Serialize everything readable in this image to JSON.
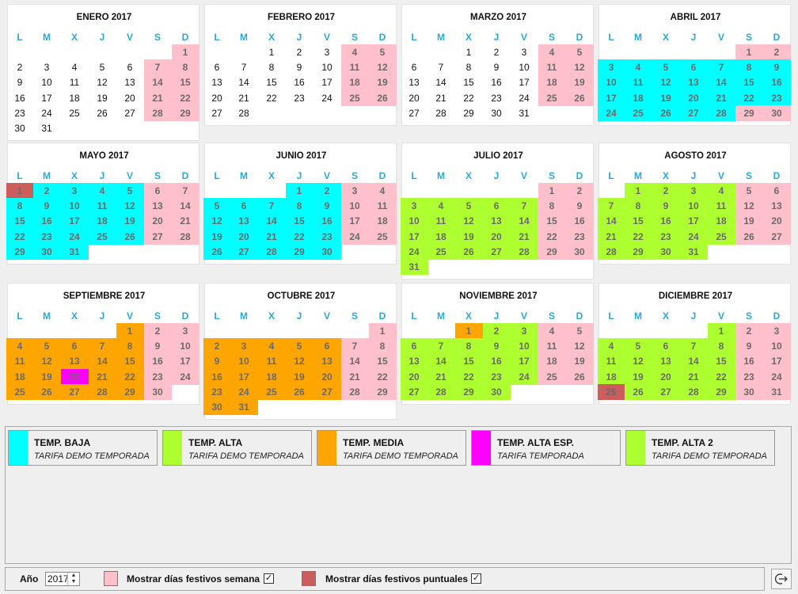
{
  "weekday_headers": [
    "L",
    "M",
    "X",
    "J",
    "V",
    "S",
    "D"
  ],
  "colors": {
    "weekend_holiday": "#ffc0cb",
    "specific_holiday": "#cd5c5c",
    "temp_baja": "#00ffff",
    "temp_alta": "#adff2f",
    "temp_media": "#ffa500",
    "temp_alta_esp": "#ff00ff",
    "temp_alta_2": "#adff2f"
  },
  "months": [
    {
      "title": "ENERO 2017",
      "offset": 6,
      "days": 31,
      "special": {}
    },
    {
      "title": "FEBRERO 2017",
      "offset": 2,
      "days": 28,
      "special": {}
    },
    {
      "title": "MARZO 2017",
      "offset": 2,
      "days": 31,
      "special": {}
    },
    {
      "title": "ABRIL 2017",
      "offset": 5,
      "days": 30,
      "special": {
        "3-28": "temp_baja"
      }
    },
    {
      "title": "MAYO 2017",
      "offset": 0,
      "days": 31,
      "special": {
        "1": "specific_holiday",
        "2-5": "temp_baja",
        "8-12": "temp_baja",
        "15-19": "temp_baja",
        "22-26": "temp_baja",
        "29-31": "temp_baja"
      }
    },
    {
      "title": "JUNIO 2017",
      "offset": 3,
      "days": 30,
      "special": {
        "1-2": "temp_baja",
        "5-9": "temp_baja",
        "12-16": "temp_baja",
        "19-23": "temp_baja",
        "26-30": "temp_baja"
      }
    },
    {
      "title": "JULIO 2017",
      "offset": 5,
      "days": 31,
      "special": {
        "3-7": "temp_alta",
        "10-14": "temp_alta",
        "17-21": "temp_alta",
        "24-28": "temp_alta",
        "31": "temp_alta"
      }
    },
    {
      "title": "AGOSTO 2017",
      "offset": 1,
      "days": 31,
      "special": {
        "1-4": "temp_alta",
        "7-11": "temp_alta",
        "14-18": "temp_alta",
        "21-25": "temp_alta",
        "28-31": "temp_alta"
      }
    },
    {
      "title": "SEPTIEMBRE 2017",
      "offset": 4,
      "days": 30,
      "special": {
        "1": "temp_media",
        "4-8": "temp_media",
        "11-15": "temp_media",
        "18-19": "temp_media",
        "20": "temp_alta_esp",
        "21-22": "temp_media",
        "25-29": "temp_media"
      }
    },
    {
      "title": "OCTUBRE 2017",
      "offset": 6,
      "days": 31,
      "special": {
        "2-6": "temp_media",
        "9-13": "temp_media",
        "16-20": "temp_media",
        "23-27": "temp_media",
        "30-31": "temp_media"
      }
    },
    {
      "title": "NOVIEMBRE 2017",
      "offset": 2,
      "days": 30,
      "special": {
        "1": "temp_media",
        "2-3": "temp_alta_2",
        "6-10": "temp_alta_2",
        "13-17": "temp_alta_2",
        "20-24": "temp_alta_2",
        "27-30": "temp_alta_2"
      }
    },
    {
      "title": "DICIEMBRE 2017",
      "offset": 4,
      "days": 31,
      "special": {
        "1": "temp_alta_2",
        "4-8": "temp_alta_2",
        "11-15": "temp_alta_2",
        "18-22": "temp_alta_2",
        "25": "specific_holiday",
        "26-29": "temp_alta_2"
      }
    }
  ],
  "legend": [
    {
      "name": "TEMP. BAJA",
      "desc": "TARIFA DEMO TEMPORADA",
      "color": "#00ffff"
    },
    {
      "name": "TEMP. ALTA",
      "desc": "TARIFA DEMO TEMPORADA",
      "color": "#adff2f"
    },
    {
      "name": "TEMP. MEDIA",
      "desc": "TARIFA DEMO TEMPORADA",
      "color": "#ffa500"
    },
    {
      "name": "TEMP. ALTA ESP.",
      "desc": "TARIFA TEMPORADA",
      "color": "#ff00ff"
    },
    {
      "name": "TEMP. ALTA 2",
      "desc": "TARIFA DEMO TEMPORADA",
      "color": "#adff2f"
    }
  ],
  "bottom": {
    "year_label": "Año",
    "year_value": "2017",
    "week_holidays_label": "Mostrar días festivos semana",
    "week_holidays_checked": "✓",
    "specific_holidays_label": "Mostrar días festivos puntuales",
    "specific_holidays_checked": "✓",
    "spin_up": "▲",
    "spin_down": "▼"
  }
}
